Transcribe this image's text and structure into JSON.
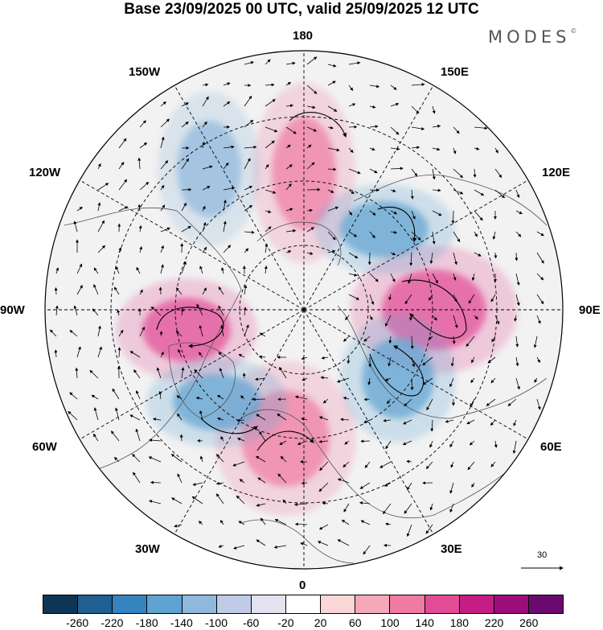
{
  "title": "Base 23/09/2025 00 UTC, valid 25/09/2025 12 UTC",
  "brand": "MODES",
  "brand_mark": "©",
  "longitude_labels": {
    "top": "180",
    "top_left": "150W",
    "top_right": "150E",
    "upper_left": "120W",
    "upper_right": "120E",
    "left": "90W",
    "right": "90E",
    "lower_left": "60W",
    "lower_right": "60E",
    "bottom_left": "30W",
    "bottom_right": "30E",
    "bottom": "0"
  },
  "reference_vector": {
    "label": "30"
  },
  "colorbar": {
    "colors": [
      "#0d3656",
      "#1f5f92",
      "#3583bf",
      "#5ea3d2",
      "#8fb8dd",
      "#bfcbe7",
      "#e2e2f0",
      "#ffffff",
      "#fad6d6",
      "#f5a9b8",
      "#ef7aa2",
      "#e24b95",
      "#c51d85",
      "#9b0d79",
      "#6a0a6e"
    ],
    "tick_labels": [
      "-260",
      "-220",
      "-180",
      "-140",
      "-100",
      "-60",
      "-20",
      "20",
      "60",
      "100",
      "140",
      "180",
      "220",
      "260"
    ]
  },
  "anomaly_features": [
    {
      "name": "anomaly-positive-north-america",
      "color": "#e24b95",
      "region": "90W"
    },
    {
      "name": "anomaly-positive-siberia",
      "color": "#e24b95",
      "region": "90E"
    },
    {
      "name": "anomaly-positive-europe",
      "color": "#ef7aa2",
      "region": "0-30E"
    },
    {
      "name": "anomaly-positive-pacific",
      "color": "#ef7aa2",
      "region": "180"
    },
    {
      "name": "anomaly-negative-central-asia",
      "color": "#5ea3d2",
      "region": "60E"
    },
    {
      "name": "anomaly-negative-east-siberia",
      "color": "#5ea3d2",
      "region": "120E"
    },
    {
      "name": "anomaly-negative-atlantic",
      "color": "#5ea3d2",
      "region": "45W"
    },
    {
      "name": "anomaly-negative-alaska",
      "color": "#8fb8dd",
      "region": "150W"
    }
  ]
}
